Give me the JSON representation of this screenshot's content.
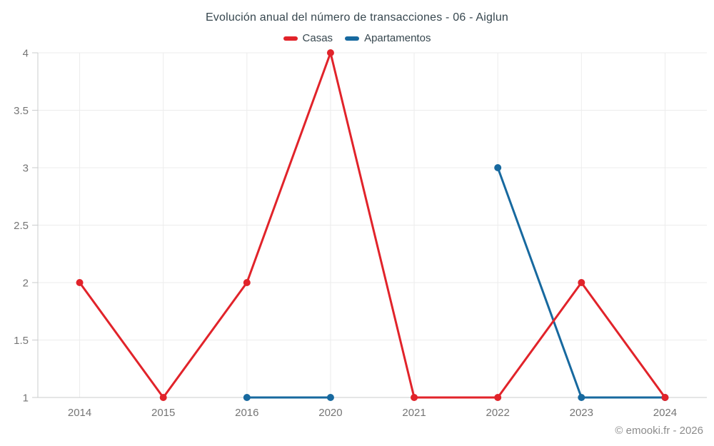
{
  "chart_data": {
    "type": "line",
    "title": "Evolución anual del número de transacciones - 06 - Aiglun",
    "categories": [
      "2014",
      "2015",
      "2016",
      "2020",
      "2021",
      "2022",
      "2023",
      "2024"
    ],
    "series": [
      {
        "name": "Casas",
        "color": "#e1232a",
        "values": [
          2,
          1,
          2,
          4,
          1,
          1,
          2,
          1
        ]
      },
      {
        "name": "Apartamentos",
        "color": "#17699f",
        "values": [
          null,
          null,
          1,
          1,
          null,
          3,
          1,
          1
        ]
      }
    ],
    "ylim": [
      1,
      4
    ],
    "yticks": [
      1,
      1.5,
      2,
      2.5,
      3,
      3.5,
      4
    ],
    "ytick_labels": [
      "1",
      "1.5",
      "2",
      "2.5",
      "3",
      "3.5",
      "4"
    ],
    "xlabel": "",
    "ylabel": "",
    "grid": true,
    "legend_position": "top"
  },
  "footer": {
    "copyright": "© emooki.fr - 2026"
  }
}
